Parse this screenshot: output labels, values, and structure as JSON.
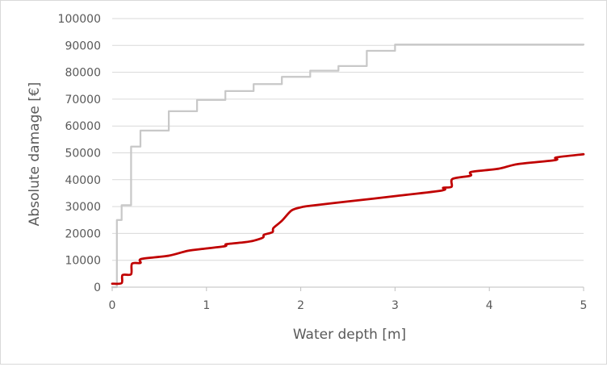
{
  "chart_data": {
    "type": "line",
    "title": "",
    "xlabel": "Water depth [m]",
    "ylabel": "Absolute damage [€]",
    "xlim": [
      0,
      5
    ],
    "ylim": [
      0,
      100000
    ],
    "x_ticks": [
      0,
      1,
      2,
      3,
      4,
      5
    ],
    "y_ticks": [
      0,
      10000,
      20000,
      30000,
      40000,
      50000,
      60000,
      70000,
      80000,
      90000,
      100000
    ],
    "grid": "horizontal",
    "legend": "none",
    "series": [
      {
        "color": "#c8c8c8",
        "curve": "step",
        "x": [
          0,
          0.05,
          0.05,
          0.1,
          0.1,
          0.2,
          0.2,
          0.3,
          0.3,
          0.6,
          0.6,
          0.9,
          0.9,
          1.2,
          1.2,
          1.5,
          1.5,
          1.8,
          1.8,
          2.1,
          2.1,
          2.4,
          2.4,
          2.7,
          2.7,
          3.0,
          3.0,
          5.0
        ],
        "y": [
          0,
          0,
          25000,
          25000,
          30500,
          30500,
          52300,
          52300,
          58300,
          58300,
          65500,
          65500,
          69700,
          69700,
          73000,
          73000,
          75600,
          75600,
          78300,
          78300,
          80600,
          80600,
          82300,
          82300,
          88000,
          88000,
          90300,
          90300
        ]
      },
      {
        "color": "#c00000",
        "curve": "smooth",
        "x": [
          0,
          0.1,
          0.11,
          0.2,
          0.21,
          0.3,
          0.31,
          0.6,
          0.8,
          1.0,
          1.2,
          1.21,
          1.4,
          1.5,
          1.6,
          1.61,
          1.7,
          1.71,
          1.8,
          1.9,
          2.0,
          2.1,
          2.5,
          3.0,
          3.5,
          3.51,
          3.6,
          3.61,
          3.8,
          3.81,
          4.1,
          4.3,
          4.7,
          4.71,
          5.0
        ],
        "y": [
          1300,
          1500,
          4500,
          4800,
          8700,
          9000,
          10500,
          11700,
          13500,
          14400,
          15300,
          16000,
          16700,
          17300,
          18500,
          19500,
          20500,
          22000,
          24700,
          28500,
          29700,
          30300,
          31900,
          33900,
          36000,
          37000,
          37400,
          40300,
          41500,
          42900,
          44100,
          45800,
          47300,
          48300,
          49500
        ]
      }
    ]
  }
}
